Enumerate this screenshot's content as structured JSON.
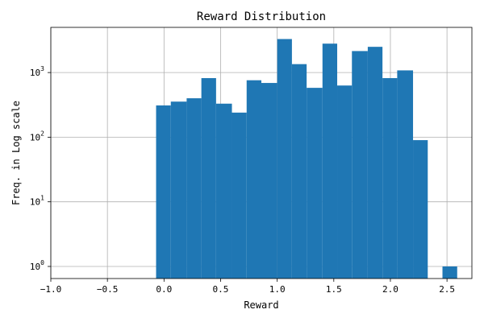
{
  "chart_data": {
    "type": "bar",
    "title": "Reward Distribution",
    "xlabel": "Reward",
    "ylabel": "Freq. in Log scale",
    "xlim": [
      -1.0,
      2.72
    ],
    "ylim": [
      0.65,
      5000
    ],
    "yscale": "log",
    "grid": true,
    "bar_color": "#1f77b4",
    "xticks": [
      {
        "value": -1.0,
        "label": "−1.0"
      },
      {
        "value": -0.5,
        "label": "−0.5"
      },
      {
        "value": 0.0,
        "label": "0.0"
      },
      {
        "value": 0.5,
        "label": "0.5"
      },
      {
        "value": 1.0,
        "label": "1.0"
      },
      {
        "value": 1.5,
        "label": "1.5"
      },
      {
        "value": 2.0,
        "label": "2.0"
      },
      {
        "value": 2.5,
        "label": "2.5"
      }
    ],
    "yticks": [
      {
        "value": 1,
        "base": "10",
        "exp": "0"
      },
      {
        "value": 10,
        "base": "10",
        "exp": "1"
      },
      {
        "value": 100,
        "base": "10",
        "exp": "2"
      },
      {
        "value": 1000,
        "base": "10",
        "exp": "3"
      }
    ],
    "bins": [
      {
        "x0": -0.07,
        "x1": 0.06,
        "count": 310
      },
      {
        "x0": 0.06,
        "x1": 0.2,
        "count": 355
      },
      {
        "x0": 0.2,
        "x1": 0.33,
        "count": 400
      },
      {
        "x0": 0.33,
        "x1": 0.46,
        "count": 820
      },
      {
        "x0": 0.46,
        "x1": 0.6,
        "count": 330
      },
      {
        "x0": 0.6,
        "x1": 0.73,
        "count": 240
      },
      {
        "x0": 0.73,
        "x1": 0.86,
        "count": 760
      },
      {
        "x0": 0.86,
        "x1": 1.0,
        "count": 690
      },
      {
        "x0": 1.0,
        "x1": 1.13,
        "count": 3300
      },
      {
        "x0": 1.13,
        "x1": 1.26,
        "count": 1350
      },
      {
        "x0": 1.26,
        "x1": 1.4,
        "count": 580
      },
      {
        "x0": 1.4,
        "x1": 1.53,
        "count": 2800
      },
      {
        "x0": 1.53,
        "x1": 1.66,
        "count": 630
      },
      {
        "x0": 1.66,
        "x1": 1.8,
        "count": 2150
      },
      {
        "x0": 1.8,
        "x1": 1.93,
        "count": 2500
      },
      {
        "x0": 1.93,
        "x1": 2.06,
        "count": 820
      },
      {
        "x0": 2.06,
        "x1": 2.2,
        "count": 1080
      },
      {
        "x0": 2.2,
        "x1": 2.33,
        "count": 90
      },
      {
        "x0": 2.46,
        "x1": 2.59,
        "count": 1
      }
    ]
  }
}
